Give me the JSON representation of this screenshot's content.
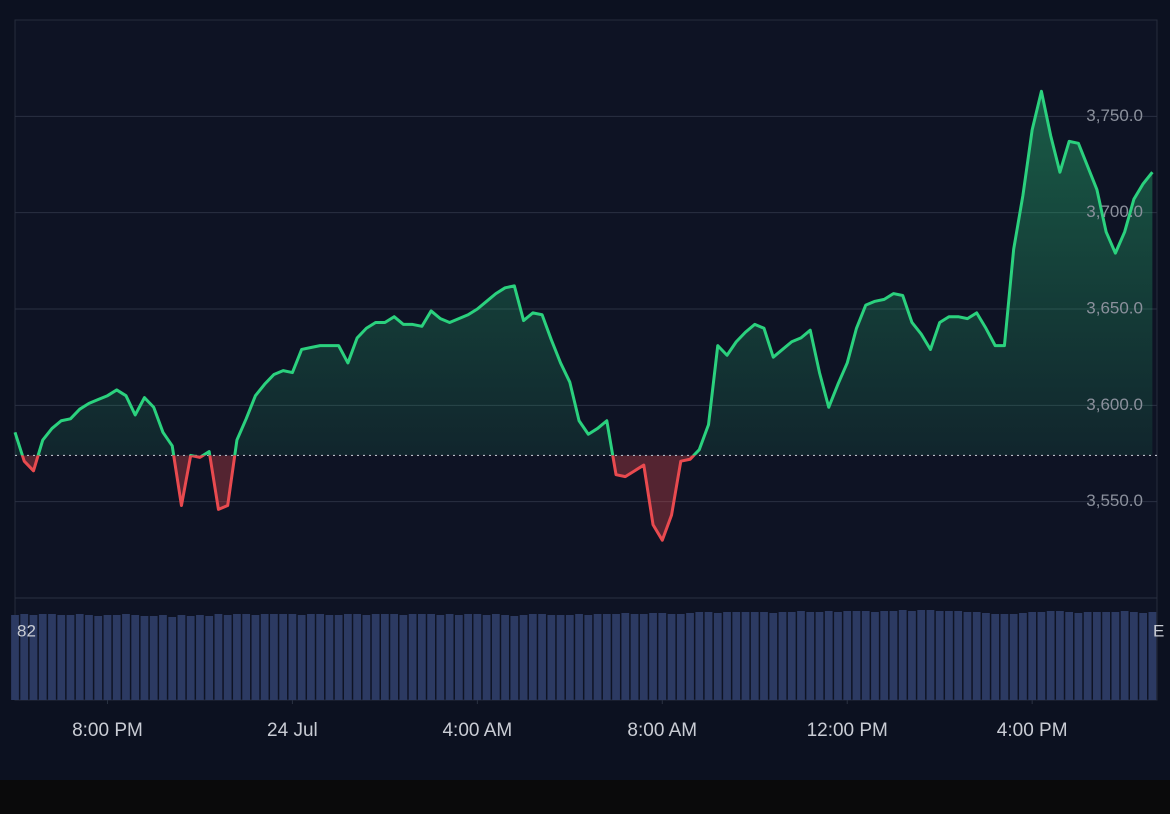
{
  "chart_data": {
    "type": "line",
    "x": [
      18.0,
      18.2,
      18.4,
      18.6,
      18.8,
      19.0,
      19.2,
      19.4,
      19.6,
      19.8,
      20.0,
      20.2,
      20.4,
      20.6,
      20.8,
      21.0,
      21.2,
      21.4,
      21.6,
      21.8,
      22.0,
      22.2,
      22.4,
      22.6,
      22.8,
      23.0,
      23.2,
      23.4,
      23.6,
      23.8,
      24.0,
      24.2,
      24.4,
      24.6,
      24.8,
      25.0,
      25.2,
      25.4,
      25.6,
      25.8,
      26.0,
      26.2,
      26.4,
      26.6,
      26.8,
      27.0,
      27.2,
      27.4,
      27.6,
      27.8,
      28.0,
      28.2,
      28.4,
      28.6,
      28.8,
      29.0,
      29.2,
      29.4,
      29.6,
      29.8,
      30.0,
      30.2,
      30.4,
      30.6,
      30.8,
      31.0,
      31.2,
      31.4,
      31.6,
      31.8,
      32.0,
      32.2,
      32.4,
      32.6,
      32.8,
      33.0,
      33.2,
      33.4,
      33.6,
      33.8,
      34.0,
      34.2,
      34.4,
      34.6,
      34.8,
      35.0,
      35.2,
      35.4,
      35.6,
      35.8,
      36.0,
      36.2,
      36.4,
      36.6,
      36.8,
      37.0,
      37.2,
      37.4,
      37.6,
      37.8,
      38.0,
      38.2,
      38.4,
      38.6,
      38.8,
      39.0,
      39.2,
      39.4,
      39.6,
      39.8,
      40.0,
      40.2,
      40.4,
      40.6,
      40.8,
      41.0,
      41.2,
      41.4,
      41.6,
      41.8,
      42.0,
      42.2,
      42.4,
      42.6
    ],
    "values": [
      3586,
      3571,
      3566,
      3582,
      3588,
      3592,
      3593,
      3598,
      3601,
      3603,
      3605,
      3608,
      3605,
      3595,
      3604,
      3599,
      3586,
      3579,
      3548,
      3574,
      3573,
      3576,
      3546,
      3548,
      3582,
      3593,
      3605,
      3611,
      3616,
      3618,
      3617,
      3629,
      3630,
      3631,
      3631,
      3631,
      3622,
      3635,
      3640,
      3643,
      3643,
      3646,
      3642,
      3642,
      3641,
      3649,
      3645,
      3643,
      3645,
      3647,
      3650,
      3654,
      3658,
      3661,
      3662,
      3644,
      3648,
      3647,
      3634,
      3622,
      3612,
      3592,
      3585,
      3588,
      3592,
      3564,
      3563,
      3566,
      3569,
      3538,
      3530,
      3543,
      3571,
      3572,
      3577,
      3590,
      3631,
      3626,
      3633,
      3638,
      3642,
      3640,
      3625,
      3629,
      3633,
      3635,
      3639,
      3617,
      3599,
      3611,
      3622,
      3640,
      3652,
      3654,
      3655,
      3658,
      3657,
      3643,
      3637,
      3629,
      3643,
      3646,
      3646,
      3645,
      3648,
      3640,
      3631,
      3631,
      3681,
      3709,
      3743,
      3763,
      3740,
      3721,
      3737,
      3736,
      3724,
      3712,
      3690,
      3679,
      3690,
      3707,
      3715,
      3721
    ],
    "baseline": 3574,
    "up_color": "#2bd17e",
    "down_color": "#e84a4f",
    "xlim": [
      18,
      42.7
    ],
    "xticks": [
      {
        "value": 20,
        "label": "8:00 PM"
      },
      {
        "value": 24,
        "label": "24 Jul"
      },
      {
        "value": 28,
        "label": "4:00 AM"
      },
      {
        "value": 32,
        "label": "8:00 AM"
      },
      {
        "value": 36,
        "label": "12:00 PM"
      },
      {
        "value": 40,
        "label": "4:00 PM"
      }
    ],
    "ylim": [
      3500,
      3800
    ],
    "yticks": [
      {
        "value": 3550,
        "label": "3,550.0"
      },
      {
        "value": 3600,
        "label": "3,600.0"
      },
      {
        "value": 3650,
        "label": "3,650.0"
      },
      {
        "value": 3700,
        "label": "3,700.0"
      },
      {
        "value": 3750,
        "label": "3,750.0"
      }
    ],
    "grid": true,
    "volume": {
      "labels": [
        "82",
        "E"
      ],
      "color": "#2c3a62",
      "ylim": [
        0,
        100
      ],
      "values": [
        85,
        86,
        85,
        86,
        86,
        85,
        85,
        86,
        85,
        84,
        85,
        85,
        86,
        85,
        84,
        84,
        85,
        83,
        85,
        84,
        85,
        84,
        86,
        85,
        86,
        86,
        85,
        86,
        86,
        86,
        86,
        85,
        86,
        86,
        85,
        85,
        86,
        86,
        85,
        86,
        86,
        86,
        85,
        86,
        86,
        86,
        85,
        86,
        85,
        86,
        86,
        85,
        86,
        85,
        84,
        85,
        86,
        86,
        85,
        85,
        85,
        86,
        85,
        86,
        86,
        86,
        87,
        86,
        86,
        87,
        87,
        86,
        86,
        87,
        88,
        88,
        87,
        88,
        88,
        88,
        88,
        88,
        87,
        88,
        88,
        89,
        88,
        88,
        89,
        88,
        89,
        89,
        89,
        88,
        89,
        89,
        90,
        89,
        90,
        90,
        89,
        89,
        89,
        88,
        88,
        87,
        86,
        86,
        86,
        87,
        88,
        88,
        89,
        89,
        88,
        87,
        88,
        88,
        88,
        88,
        89,
        88,
        87,
        88
      ]
    }
  }
}
